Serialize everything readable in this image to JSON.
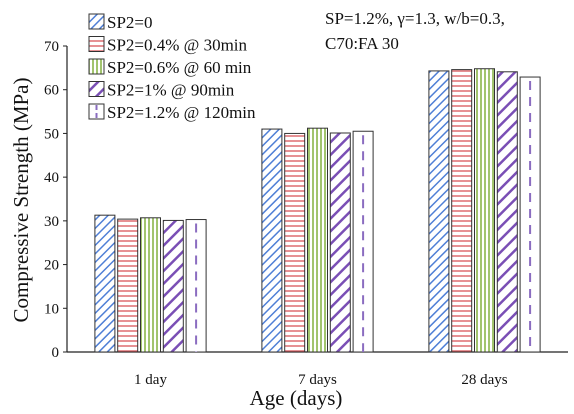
{
  "chart_data": {
    "type": "bar",
    "title": "",
    "xlabel": "Age (days)",
    "ylabel": "Compressive Strength (MPa)",
    "ylim": [
      0,
      70
    ],
    "yticks": [
      0,
      10,
      20,
      30,
      40,
      50,
      60,
      70
    ],
    "categories": [
      "1 day",
      "7 days",
      "28 days"
    ],
    "legend_position": "top-left",
    "annotation": [
      "SP=1.2%, γ=1.3, w/b=0.3,",
      "C70:FA 30"
    ],
    "series": [
      {
        "name": "SP2=0",
        "values": [
          31.3,
          51.0,
          64.3
        ],
        "color": "#4f7fd6",
        "pattern": "diagonal"
      },
      {
        "name": "SP2=0.4% @ 30min",
        "values": [
          30.4,
          50.0,
          64.6
        ],
        "color": "#d9565a",
        "pattern": "horizontal"
      },
      {
        "name": "SP2=0.6% @ 60 min",
        "values": [
          30.7,
          51.2,
          64.8
        ],
        "color": "#8ab54a",
        "pattern": "vertical"
      },
      {
        "name": "SP2=1% @ 90min",
        "values": [
          30.1,
          50.1,
          64.1
        ],
        "color": "#7a4fb5",
        "pattern": "wide-diagonal"
      },
      {
        "name": "SP2=1.2% @ 120min",
        "values": [
          30.3,
          50.5,
          62.9
        ],
        "color": "#8a6cc0",
        "pattern": "dashed"
      }
    ]
  }
}
